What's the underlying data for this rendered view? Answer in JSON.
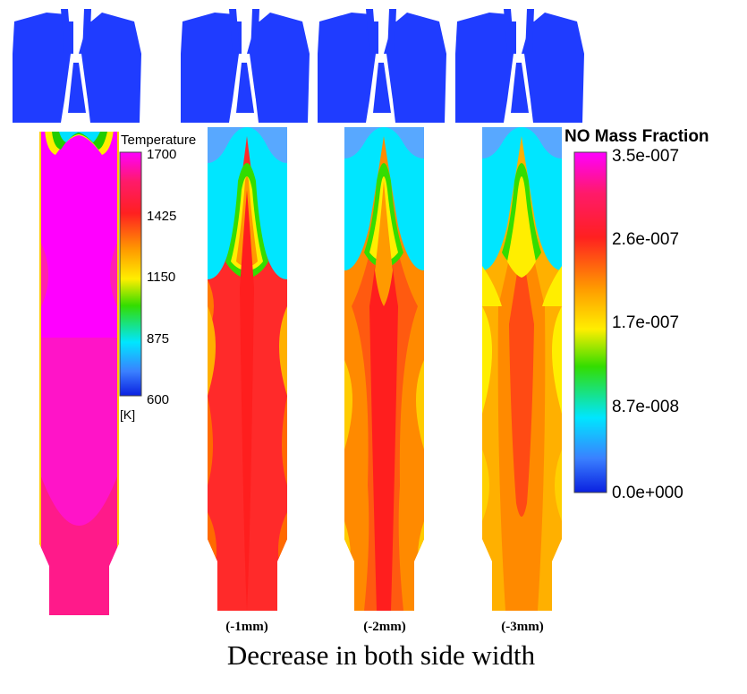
{
  "temperature_legend": {
    "title": "Temperature",
    "unit": "[K]",
    "ticks": [
      "1700",
      "1425",
      "1150",
      "875",
      "600"
    ]
  },
  "no_legend": {
    "title": "NO Mass Fraction",
    "ticks": [
      "3.5e-007",
      "2.6e-007",
      "1.7e-007",
      "8.7e-008",
      "0.0e+000"
    ]
  },
  "panels": [
    {
      "label": ""
    },
    {
      "label": "(-1mm)"
    },
    {
      "label": "(-2mm)"
    },
    {
      "label": "(-3mm)"
    }
  ],
  "caption": "Decrease in both side width",
  "colors": {
    "magenta": "#ff00ff",
    "red": "#ff1e1e",
    "orange": "#ff9a00",
    "yellow": "#ffe600",
    "green": "#33dd00",
    "cyan": "#00e6ff",
    "light_blue": "#4aa8ff",
    "blue": "#0a36ff"
  }
}
